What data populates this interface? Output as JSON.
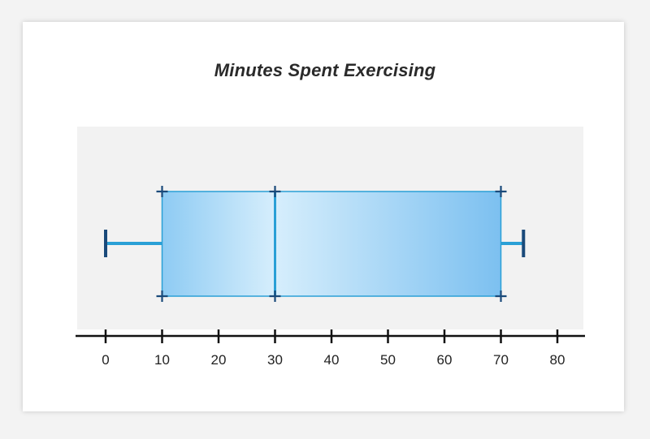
{
  "chart_data": {
    "type": "boxplot",
    "title": "Minutes Spent Exercising",
    "xlabel": "",
    "ylabel": "",
    "xlim": [
      -5,
      85
    ],
    "ticks": [
      0,
      10,
      20,
      30,
      40,
      50,
      60,
      70,
      80
    ],
    "tick_labels": [
      "0",
      "10",
      "20",
      "30",
      "40",
      "50",
      "60",
      "70",
      "80"
    ],
    "box": {
      "min": 0,
      "q1": 10,
      "median": 30,
      "q3": 70,
      "max": 74
    },
    "grid": false
  },
  "colors": {
    "card_background": "#ffffff",
    "plot_background": "#f2f2f2",
    "box_light": "#d6eefc",
    "box_dark": "#7cc0f0",
    "whisker": "#2aa0d6",
    "cap": "#1a4a7a",
    "axis": "#111111"
  }
}
